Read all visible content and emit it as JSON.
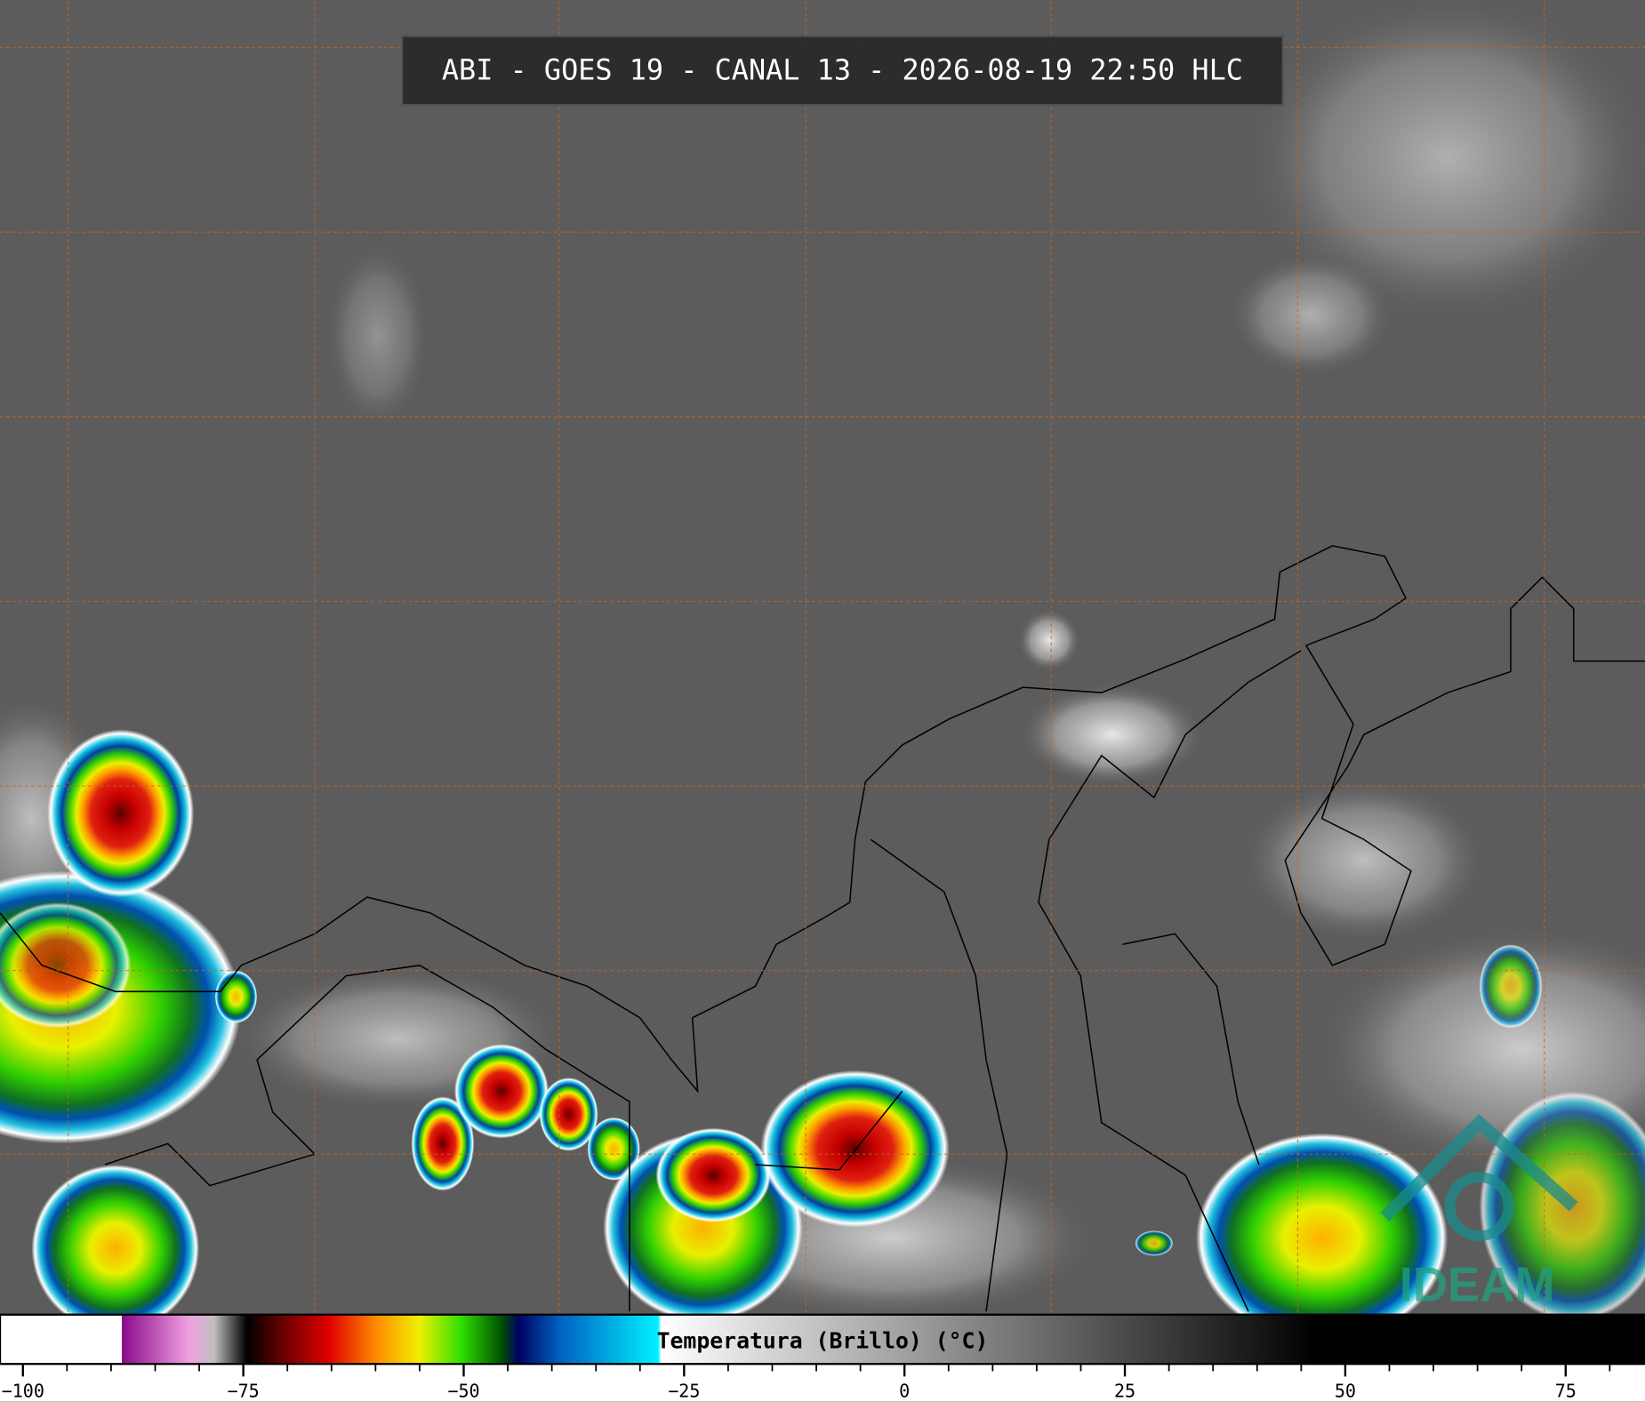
{
  "title": "ABI - GOES 19 - CANAL 13 - 2026-08-19 22:50 HLC",
  "colorbar": {
    "label": "Temperatura (Brillo) (°C)",
    "range": [
      -102.6,
      84
    ],
    "ticks": [
      -100,
      -75,
      -50,
      -25,
      0,
      25,
      50,
      75
    ],
    "minor_ticks": [
      -95,
      -90,
      -85,
      -80,
      -70,
      -65,
      -60,
      -55,
      -45,
      -40,
      -35,
      -30,
      -20,
      -15,
      -10,
      -5,
      5,
      10,
      15,
      20,
      30,
      35,
      40,
      45,
      55,
      60,
      65,
      70,
      80
    ]
  },
  "logo": "IDEAM"
}
